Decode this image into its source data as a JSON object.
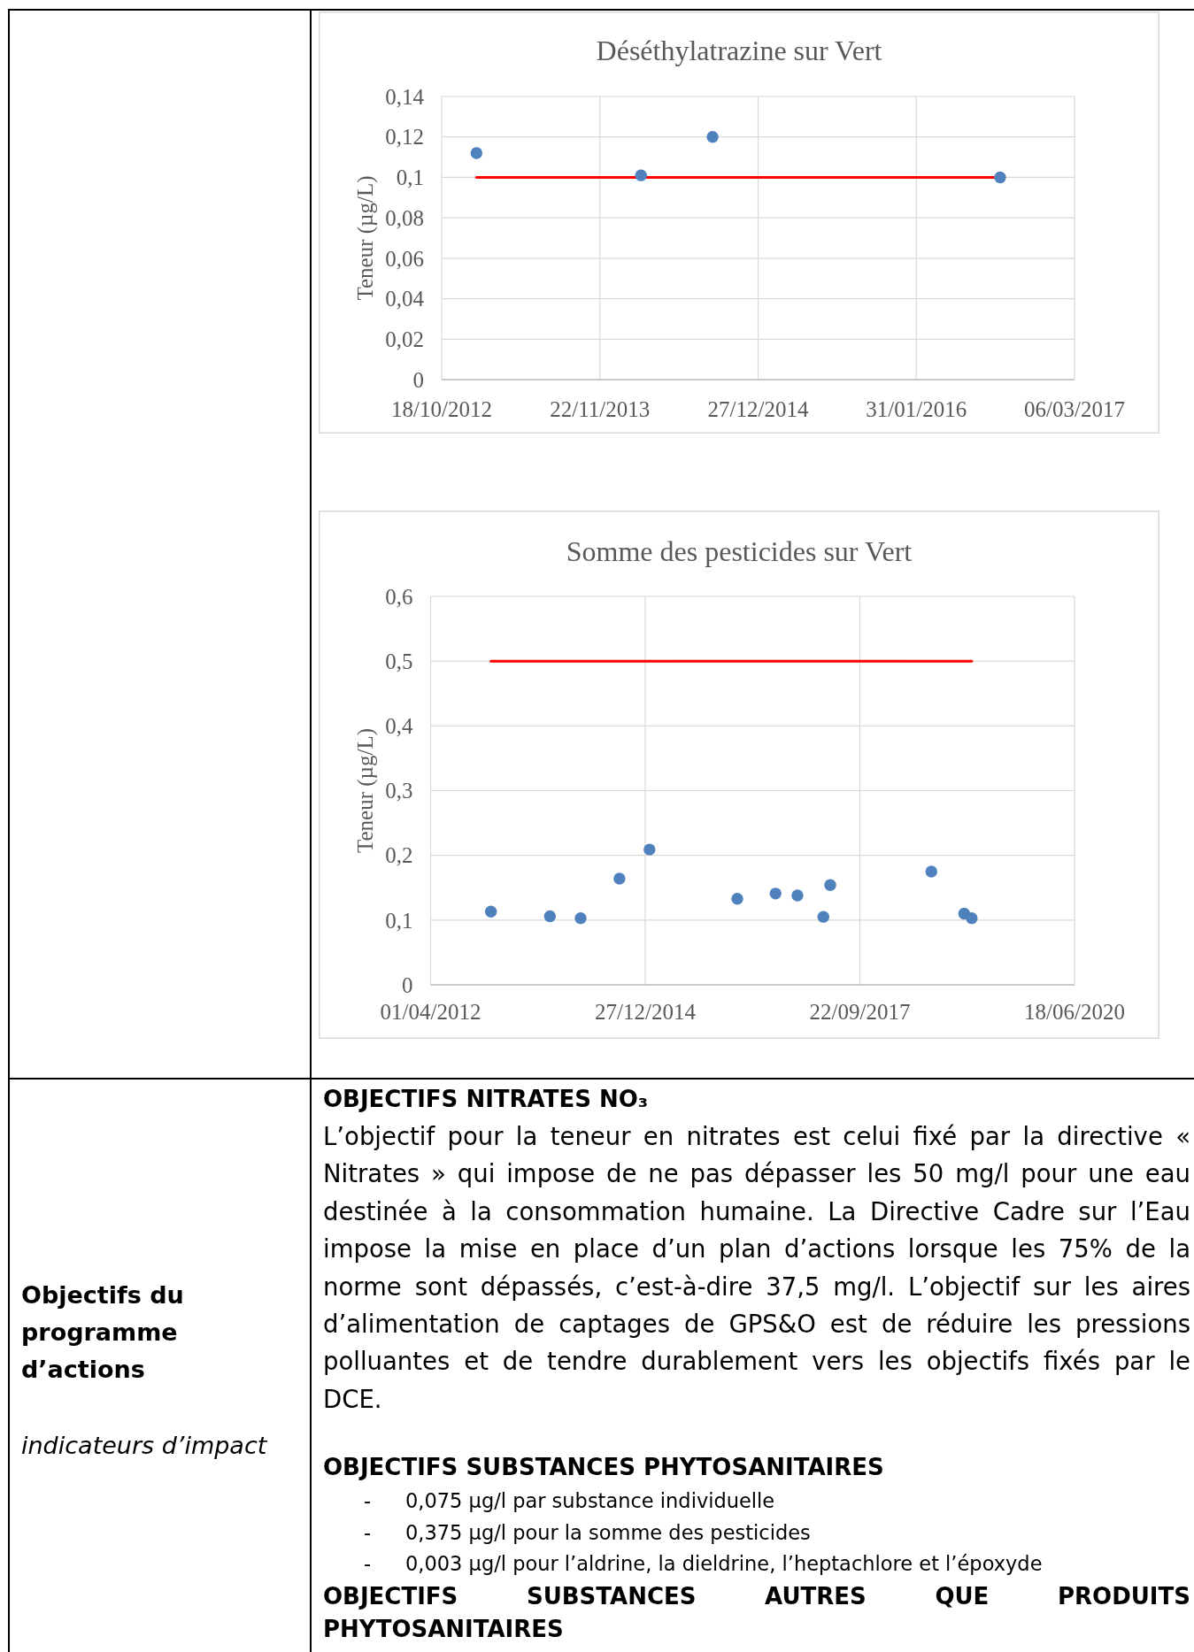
{
  "chart_data": [
    {
      "type": "scatter",
      "title": "Déséthylatrazine sur Vert",
      "ylabel": "Teneur (µg/L)",
      "x": [
        "2013-01-14",
        "2014-03-06",
        "2014-09-03",
        "2016-08-30"
      ],
      "series": [
        {
          "type": "scatter",
          "color": "#4f81bd",
          "marker": "circle",
          "values": [
            0.112,
            0.101,
            0.12,
            0.1
          ]
        },
        {
          "type": "line",
          "color": "#ff0000",
          "x": [
            "2013-01-14",
            "2016-08-30"
          ],
          "values": [
            0.1,
            0.1
          ]
        }
      ],
      "xlim": [
        "2012-10-18",
        "2017-03-06"
      ],
      "xticks": [
        {
          "value": "2012-10-18",
          "label": "18/10/2012"
        },
        {
          "value": "2013-11-22",
          "label": "22/11/2013"
        },
        {
          "value": "2014-12-27",
          "label": "27/12/2014"
        },
        {
          "value": "2016-01-31",
          "label": "31/01/2016"
        },
        {
          "value": "2017-03-06",
          "label": "06/03/2017"
        }
      ],
      "ylim": [
        0,
        0.14
      ],
      "yticks": [
        0,
        {
          "value": 0.02,
          "label": "0,02"
        },
        {
          "value": 0.04,
          "label": "0,04"
        },
        {
          "value": 0.06,
          "label": "0,06"
        },
        {
          "value": 0.08,
          "label": "0,08"
        },
        {
          "value": 0.1,
          "label": "0,1"
        },
        {
          "value": 0.12,
          "label": "0,12"
        },
        {
          "value": 0.14,
          "label": "0,14"
        }
      ],
      "grid": true
    },
    {
      "type": "scatter",
      "title": "Somme des pesticides sur Vert",
      "ylabel": "Teneur (µg/L)",
      "x": [
        "2013-01-07",
        "2013-10-09",
        "2014-03-01",
        "2014-08-29",
        "2015-01-16",
        "2016-02-29",
        "2016-08-25",
        "2016-12-05",
        "2017-04-05",
        "2017-05-07",
        "2018-08-21",
        "2019-01-21",
        "2019-02-25"
      ],
      "series": [
        {
          "type": "scatter",
          "color": "#4f81bd",
          "marker": "circle",
          "values": [
            0.113,
            0.106,
            0.103,
            0.164,
            0.209,
            0.133,
            0.141,
            0.138,
            0.105,
            0.154,
            0.175,
            0.11,
            0.103
          ]
        },
        {
          "type": "line",
          "color": "#ff0000",
          "x": [
            "2013-01-07",
            "2019-02-25"
          ],
          "values": [
            0.5,
            0.5
          ]
        }
      ],
      "xlim": [
        "2012-04-01",
        "2020-06-18"
      ],
      "xticks": [
        {
          "value": "2012-04-01",
          "label": "01/04/2012"
        },
        {
          "value": "2014-12-27",
          "label": "27/12/2014"
        },
        {
          "value": "2017-09-22",
          "label": "22/09/2017"
        },
        {
          "value": "2020-06-18",
          "label": "18/06/2020"
        }
      ],
      "ylim": [
        0,
        0.6
      ],
      "yticks": [
        0,
        {
          "value": 0.1,
          "label": "0,1"
        },
        {
          "value": 0.2,
          "label": "0,2"
        },
        {
          "value": 0.3,
          "label": "0,3"
        },
        {
          "value": 0.4,
          "label": "0,4"
        },
        {
          "value": 0.5,
          "label": "0,5"
        },
        {
          "value": 0.6,
          "label": "0,6"
        }
      ],
      "grid": true
    },
    {
      "type": "other",
      "title": "Objectifs du programme d’actions",
      "subtitle": "indicateurs d’impact",
      "annotations": [
        "OBJECTIFS NITRATES NO₃",
        "L’objectif pour la teneur en nitrates est celui fixé par la directive « Nitrates » qui impose de ne pas dépasser les 50 mg/l pour une eau destinée à la consommation humaine. La Directive Cadre sur l’Eau impose la mise en place d’un plan d’actions lorsque les 75% de la norme sont dépassés, c’est-à-dire 37,5 mg/l. L’objectif sur les aires d’alimentation de captages de GPS&O est de réduire les pressions polluantes et de tendre durablement vers les objectifs fixés par le DCE.",
        "OBJECTIFS SUBSTANCES PHYTOSANITAIRES",
        "- 0,075 µg/l par substance individuelle",
        "- 0,375 µg/l pour la somme des pesticides",
        "- 0,003 µg/l pour l’aldrine, la dieldrine, l’heptachlore et l’époxyde",
        "OBJECTIFS SUBSTANCES AUTRES QUE PRODUITS PHYTOSANITAIRES"
      ]
    }
  ]
}
